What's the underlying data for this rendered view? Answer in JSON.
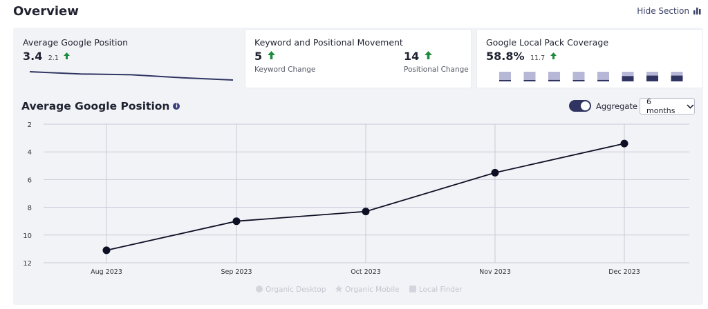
{
  "header": {
    "title": "Overview",
    "hide_section_label": "Hide Section"
  },
  "cards": {
    "avg_position": {
      "title": "Average Google Position",
      "value": "3.4",
      "change": "2.1",
      "sparkline": [
        11.1,
        9.0,
        8.3,
        5.5,
        3.4
      ]
    },
    "keyword_movement": {
      "title": "Keyword and Positional Movement",
      "keyword_change_value": "5",
      "keyword_change_label": "Keyword Change",
      "positional_change_value": "14",
      "positional_change_label": "Positional Change"
    },
    "local_pack": {
      "title": "Google Local Pack Coverage",
      "value": "58.8%",
      "change": "11.7",
      "bars": [
        0.05,
        0.1,
        0.15,
        0.1,
        0.15,
        0.55,
        0.6,
        0.6
      ]
    }
  },
  "chart_section": {
    "title": "Average Google Position",
    "aggregate_label": "Aggregate",
    "aggregate_on": true,
    "range_value": "6 months"
  },
  "colors": {
    "accent": "#2f3461",
    "up_arrow": "#1e8a3c",
    "bar_light": "#b7b7d8",
    "bar_dark": "#2f3461"
  },
  "chart_data": {
    "type": "line",
    "title": "Average Google Position",
    "x": [
      "Aug 2023",
      "Sep 2023",
      "Oct 2023",
      "Nov 2023",
      "Dec 2023"
    ],
    "series": [
      {
        "values": [
          11.1,
          9.0,
          8.3,
          5.5,
          3.4
        ]
      }
    ],
    "y_ticks": [
      2,
      4,
      6,
      8,
      10,
      12
    ],
    "ylim": [
      2,
      12
    ],
    "y_inverted": true,
    "grid": true,
    "legend": {
      "placement": "bottom-center",
      "items": [
        {
          "label": "Organic Desktop",
          "icon": "circle-icon"
        },
        {
          "label": "Organic Mobile",
          "icon": "star-icon"
        },
        {
          "label": "Local Finder",
          "icon": "square-icon"
        }
      ]
    }
  }
}
